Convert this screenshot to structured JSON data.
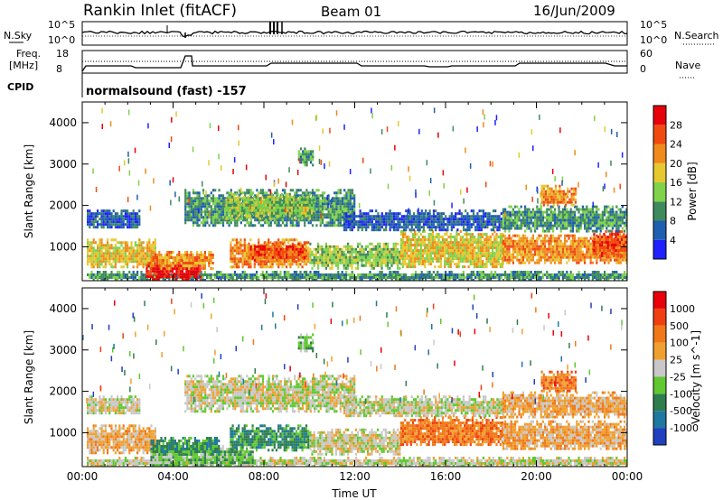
{
  "header": {
    "title": "Rankin Inlet (fitACF)",
    "beam": "Beam 01",
    "date": "16/Jun/2009"
  },
  "strip": {
    "nsky_label": "N.Sky",
    "nsky_ticks": [
      "10^5",
      "10^0"
    ],
    "nsearch_label": "N.Search",
    "nsearch_ticks": [
      "10^5",
      "10^0"
    ],
    "freq_label": "Freq.",
    "freq_unit": "[MHz]",
    "freq_ticks": [
      "18",
      "8"
    ],
    "nave_label": "Nave",
    "nave_ticks": [
      "60",
      "0"
    ],
    "cpid_label": "CPID",
    "cpid_text": "normalsound (fast) -157"
  },
  "chart_data": [
    {
      "type": "heatmap",
      "title": "",
      "xlabel": "Time UT",
      "ylabel": "Slant Range [km]",
      "x_ticks": [
        "00:00",
        "04:00",
        "08:00",
        "12:00",
        "16:00",
        "20:00",
        "00:00"
      ],
      "x_range_hours": [
        0,
        24
      ],
      "y_ticks": [
        1000,
        2000,
        3000,
        4000
      ],
      "ylim": [
        180,
        4500
      ],
      "colorbar": {
        "label": "Power [dB]",
        "ticks": [
          "4",
          "8",
          "12",
          "16",
          "20",
          "24",
          "28"
        ],
        "colors": [
          "#2020ff",
          "#1e5fb0",
          "#3e8a5c",
          "#7fd24a",
          "#e6c830",
          "#f08a1c",
          "#f04a10",
          "#e8000a"
        ]
      },
      "regions": [
        {
          "t0": 0.2,
          "t1": 24,
          "r0": 200,
          "r1": 420,
          "level": 2
        },
        {
          "t0": 0.2,
          "t1": 3.2,
          "r0": 500,
          "r1": 1200,
          "level": 4
        },
        {
          "t0": 2.8,
          "t1": 5.2,
          "r0": 220,
          "r1": 700,
          "level": 7
        },
        {
          "t0": 3.0,
          "t1": 5.8,
          "r0": 500,
          "r1": 900,
          "level": 5
        },
        {
          "t0": 6.5,
          "t1": 10.0,
          "r0": 500,
          "r1": 1200,
          "level": 5
        },
        {
          "t0": 7.3,
          "t1": 9.8,
          "r0": 700,
          "r1": 1100,
          "level": 6
        },
        {
          "t0": 10.0,
          "t1": 14.0,
          "r0": 500,
          "r1": 1100,
          "level": 3
        },
        {
          "t0": 14.0,
          "t1": 18.5,
          "r0": 500,
          "r1": 1400,
          "level": 4
        },
        {
          "t0": 18.5,
          "t1": 24,
          "r0": 600,
          "r1": 1300,
          "level": 5
        },
        {
          "t0": 22.5,
          "t1": 24,
          "r0": 800,
          "r1": 1400,
          "level": 6
        },
        {
          "t0": 0.2,
          "t1": 2.5,
          "r0": 1450,
          "r1": 1900,
          "level": 1
        },
        {
          "t0": 4.5,
          "t1": 12.0,
          "r0": 1500,
          "r1": 2400,
          "level": 2
        },
        {
          "t0": 6.3,
          "t1": 10.2,
          "r0": 1700,
          "r1": 2300,
          "level": 3
        },
        {
          "t0": 11.5,
          "t1": 18.5,
          "r0": 1400,
          "r1": 1900,
          "level": 1
        },
        {
          "t0": 18.5,
          "t1": 24,
          "r0": 1400,
          "r1": 2000,
          "level": 2
        },
        {
          "t0": 20.2,
          "t1": 21.7,
          "r0": 2000,
          "r1": 2500,
          "level": 5
        },
        {
          "t0": 9.5,
          "t1": 10.2,
          "r0": 3000,
          "r1": 3400,
          "level": 2
        }
      ]
    },
    {
      "type": "heatmap",
      "title": "",
      "xlabel": "Time UT",
      "ylabel": "Slant Range [km]",
      "x_ticks": [
        "00:00",
        "04:00",
        "08:00",
        "12:00",
        "16:00",
        "20:00",
        "00:00"
      ],
      "x_range_hours": [
        0,
        24
      ],
      "y_ticks": [
        1000,
        2000,
        3000,
        4000
      ],
      "ylim": [
        180,
        4500
      ],
      "colorbar": {
        "label": "Velocity [m s^-1]",
        "ticks": [
          "1000",
          "500",
          "100",
          "25",
          "-25",
          "-100",
          "-500",
          "-1000"
        ],
        "colors": [
          "#2040c0",
          "#1e78a0",
          "#2e7d4e",
          "#60c830",
          "#c8c8c8",
          "#f0a030",
          "#f07818",
          "#f04010",
          "#e8000a"
        ]
      },
      "regions": [
        {
          "t0": 0.2,
          "t1": 24,
          "r0": 200,
          "r1": 420,
          "level": 4
        },
        {
          "t0": 3.0,
          "t1": 7.5,
          "r0": 200,
          "r1": 700,
          "level": 3
        },
        {
          "t0": 0.2,
          "t1": 3.2,
          "r0": 500,
          "r1": 1200,
          "level": 5
        },
        {
          "t0": 3.0,
          "t1": 6.0,
          "r0": 500,
          "r1": 900,
          "level": 2
        },
        {
          "t0": 6.5,
          "t1": 10.0,
          "r0": 600,
          "r1": 1200,
          "level": 2
        },
        {
          "t0": 10.0,
          "t1": 14.0,
          "r0": 500,
          "r1": 1100,
          "level": 4
        },
        {
          "t0": 14.0,
          "t1": 18.5,
          "r0": 700,
          "r1": 1400,
          "level": 6
        },
        {
          "t0": 18.5,
          "t1": 24,
          "r0": 600,
          "r1": 1300,
          "level": 5
        },
        {
          "t0": 0.2,
          "t1": 2.5,
          "r0": 1450,
          "r1": 1900,
          "level": 4
        },
        {
          "t0": 4.5,
          "t1": 12.0,
          "r0": 1500,
          "r1": 2400,
          "level": 4
        },
        {
          "t0": 11.5,
          "t1": 18.5,
          "r0": 1400,
          "r1": 1900,
          "level": 4
        },
        {
          "t0": 18.5,
          "t1": 24,
          "r0": 1400,
          "r1": 2000,
          "level": 5
        },
        {
          "t0": 20.2,
          "t1": 21.7,
          "r0": 2000,
          "r1": 2500,
          "level": 6
        },
        {
          "t0": 9.5,
          "t1": 10.2,
          "r0": 3000,
          "r1": 3400,
          "level": 3
        }
      ]
    }
  ]
}
